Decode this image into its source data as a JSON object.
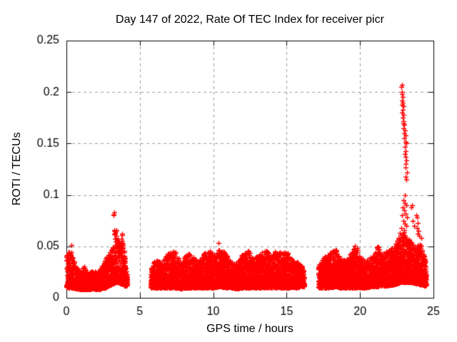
{
  "chart_data": {
    "type": "scatter",
    "title": "Day 147 of 2022, Rate Of TEC Index for receiver picr",
    "xlabel": "GPS time / hours",
    "ylabel": "ROTI / TECUs",
    "xlim": [
      0,
      25
    ],
    "ylim": [
      0,
      0.25
    ],
    "xticks": [
      0,
      5,
      10,
      15,
      20,
      25
    ],
    "yticks": [
      0,
      0.05,
      0.1,
      0.15,
      0.2,
      0.25
    ],
    "xtick_labels": [
      "0",
      "5",
      "10",
      "15",
      "20",
      "25"
    ],
    "ytick_labels": [
      "0",
      "0.05",
      "0.1",
      "0.15",
      "0.2",
      "0.25"
    ],
    "grid": {
      "visible": true,
      "style": "dashed",
      "color": "#9c9c9c"
    },
    "frame_color": "#000000",
    "background": "#ffffff",
    "marker": {
      "shape": "plus",
      "color": "#ff0000",
      "size": 7
    },
    "legend": null,
    "seed": 1147,
    "gaps": [
      [
        4.15,
        5.74
      ],
      [
        16.2,
        17.15
      ]
    ],
    "segments": [
      {
        "name": "band-0-4h",
        "t0": 0.0,
        "t1": 4.15,
        "n": 1600,
        "bias": 1.9,
        "envelope": [
          [
            0.0,
            0.01,
            0.042
          ],
          [
            0.3,
            0.01,
            0.047
          ],
          [
            0.6,
            0.009,
            0.032
          ],
          [
            0.9,
            0.008,
            0.026
          ],
          [
            1.2,
            0.008,
            0.031
          ],
          [
            1.5,
            0.008,
            0.024
          ],
          [
            1.8,
            0.009,
            0.029
          ],
          [
            2.1,
            0.008,
            0.024
          ],
          [
            2.4,
            0.009,
            0.031
          ],
          [
            2.7,
            0.01,
            0.039
          ],
          [
            3.0,
            0.012,
            0.046
          ],
          [
            3.2,
            0.014,
            0.062
          ],
          [
            3.35,
            0.015,
            0.072
          ],
          [
            3.5,
            0.015,
            0.058
          ],
          [
            3.65,
            0.014,
            0.056
          ],
          [
            3.8,
            0.013,
            0.07
          ],
          [
            3.95,
            0.012,
            0.048
          ],
          [
            4.05,
            0.012,
            0.03
          ],
          [
            4.15,
            0.012,
            0.022
          ]
        ]
      },
      {
        "name": "band-5.7-16.2h",
        "t0": 5.74,
        "t1": 16.2,
        "n": 4600,
        "bias": 1.9,
        "envelope": [
          [
            5.74,
            0.01,
            0.028
          ],
          [
            6.1,
            0.01,
            0.04
          ],
          [
            6.5,
            0.01,
            0.034
          ],
          [
            6.9,
            0.01,
            0.043
          ],
          [
            7.4,
            0.01,
            0.046
          ],
          [
            7.8,
            0.009,
            0.034
          ],
          [
            8.2,
            0.01,
            0.045
          ],
          [
            8.6,
            0.01,
            0.04
          ],
          [
            9.0,
            0.01,
            0.036
          ],
          [
            9.4,
            0.01,
            0.044
          ],
          [
            9.8,
            0.01,
            0.046
          ],
          [
            10.1,
            0.01,
            0.04
          ],
          [
            10.4,
            0.011,
            0.048
          ],
          [
            10.8,
            0.01,
            0.044
          ],
          [
            11.2,
            0.01,
            0.036
          ],
          [
            11.6,
            0.009,
            0.033
          ],
          [
            12.0,
            0.01,
            0.043
          ],
          [
            12.4,
            0.01,
            0.046
          ],
          [
            12.8,
            0.01,
            0.038
          ],
          [
            13.2,
            0.01,
            0.044
          ],
          [
            13.6,
            0.01,
            0.047
          ],
          [
            14.0,
            0.01,
            0.041
          ],
          [
            14.3,
            0.01,
            0.049
          ],
          [
            14.7,
            0.01,
            0.043
          ],
          [
            15.0,
            0.01,
            0.046
          ],
          [
            15.4,
            0.01,
            0.038
          ],
          [
            15.7,
            0.01,
            0.035
          ],
          [
            16.0,
            0.011,
            0.032
          ],
          [
            16.2,
            0.011,
            0.025
          ]
        ]
      },
      {
        "name": "band-17.2-24.5h",
        "t0": 17.15,
        "t1": 24.5,
        "n": 3400,
        "bias": 1.9,
        "envelope": [
          [
            17.15,
            0.01,
            0.03
          ],
          [
            17.5,
            0.01,
            0.04
          ],
          [
            17.9,
            0.01,
            0.044
          ],
          [
            18.3,
            0.011,
            0.048
          ],
          [
            18.6,
            0.01,
            0.04
          ],
          [
            19.0,
            0.01,
            0.036
          ],
          [
            19.4,
            0.01,
            0.044
          ],
          [
            19.7,
            0.01,
            0.052
          ],
          [
            20.0,
            0.01,
            0.04
          ],
          [
            20.4,
            0.01,
            0.036
          ],
          [
            20.8,
            0.011,
            0.04
          ],
          [
            21.2,
            0.011,
            0.05
          ],
          [
            21.6,
            0.012,
            0.044
          ],
          [
            22.0,
            0.012,
            0.046
          ],
          [
            22.4,
            0.013,
            0.052
          ],
          [
            22.7,
            0.015,
            0.06
          ],
          [
            23.0,
            0.015,
            0.065
          ],
          [
            23.2,
            0.015,
            0.06
          ],
          [
            23.5,
            0.015,
            0.055
          ],
          [
            23.8,
            0.014,
            0.052
          ],
          [
            24.1,
            0.013,
            0.055
          ],
          [
            24.3,
            0.012,
            0.045
          ],
          [
            24.5,
            0.012,
            0.035
          ]
        ]
      }
    ],
    "outliers": [
      [
        0.33,
        0.051
      ],
      [
        3.2,
        0.08
      ],
      [
        3.22,
        0.081
      ],
      [
        3.26,
        0.083
      ],
      [
        10.35,
        0.053
      ],
      [
        23.5,
        0.088
      ],
      [
        23.55,
        0.09
      ],
      [
        23.6,
        0.075
      ],
      [
        23.7,
        0.07
      ],
      [
        23.85,
        0.08
      ],
      [
        23.9,
        0.078
      ],
      [
        23.95,
        0.073
      ],
      [
        23.88,
        0.068
      ],
      [
        24.0,
        0.065
      ],
      [
        23.92,
        0.062
      ],
      [
        24.05,
        0.06
      ],
      [
        24.15,
        0.058
      ]
    ],
    "spike_points": [
      [
        22.82,
        0.205
      ],
      [
        22.86,
        0.207
      ],
      [
        22.84,
        0.198
      ],
      [
        22.88,
        0.2
      ],
      [
        22.9,
        0.195
      ],
      [
        22.86,
        0.192
      ],
      [
        22.92,
        0.19
      ],
      [
        22.88,
        0.188
      ],
      [
        22.94,
        0.186
      ],
      [
        22.9,
        0.183
      ],
      [
        22.85,
        0.18
      ],
      [
        22.96,
        0.178
      ],
      [
        22.92,
        0.175
      ],
      [
        22.98,
        0.172
      ],
      [
        22.94,
        0.17
      ],
      [
        23.0,
        0.168
      ],
      [
        22.96,
        0.165
      ],
      [
        23.05,
        0.163
      ],
      [
        23.0,
        0.16
      ],
      [
        23.08,
        0.158
      ],
      [
        23.02,
        0.155
      ],
      [
        23.1,
        0.152
      ],
      [
        23.15,
        0.15
      ],
      [
        23.06,
        0.147
      ],
      [
        23.12,
        0.143
      ],
      [
        23.04,
        0.14
      ],
      [
        23.1,
        0.137
      ],
      [
        23.16,
        0.134
      ],
      [
        23.08,
        0.13
      ],
      [
        23.12,
        0.127
      ],
      [
        23.18,
        0.122
      ],
      [
        23.1,
        0.118
      ],
      [
        23.14,
        0.115
      ],
      [
        23.06,
        0.1
      ],
      [
        22.95,
        0.095
      ],
      [
        23.05,
        0.092
      ],
      [
        23.15,
        0.09
      ],
      [
        22.9,
        0.088
      ],
      [
        23.0,
        0.085
      ],
      [
        23.1,
        0.082
      ],
      [
        22.85,
        0.08
      ],
      [
        23.2,
        0.078
      ],
      [
        22.95,
        0.075
      ],
      [
        23.05,
        0.072
      ],
      [
        23.15,
        0.07
      ],
      [
        22.8,
        0.068
      ],
      [
        23.0,
        0.066
      ],
      [
        22.7,
        0.063
      ],
      [
        22.6,
        0.058
      ]
    ]
  }
}
